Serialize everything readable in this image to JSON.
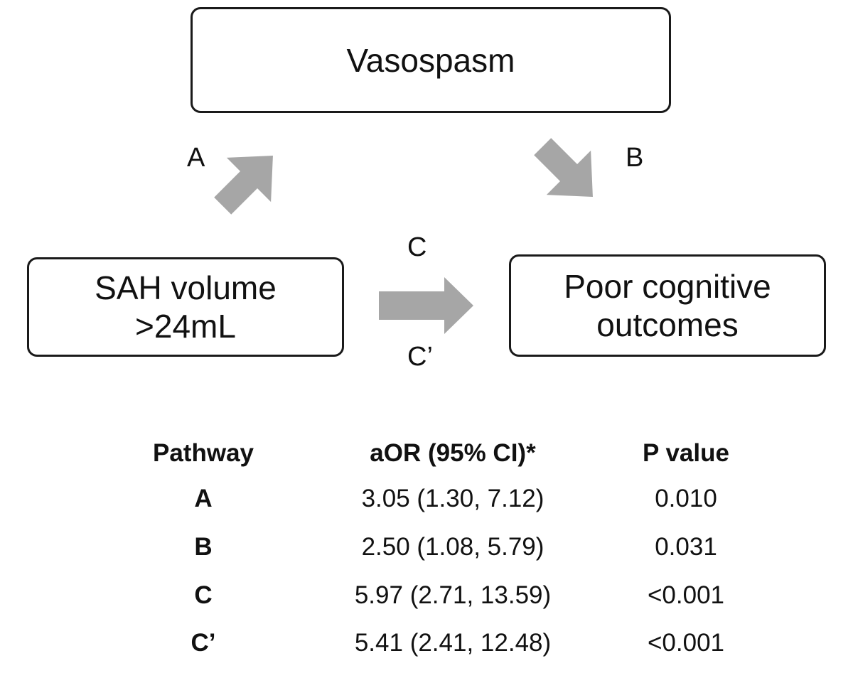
{
  "diagram": {
    "boxes": {
      "vasospasm": "Vasospasm",
      "sah_volume": "SAH volume\n>24mL",
      "poor_outcomes": "Poor cognitive\noutcomes"
    },
    "path_labels": {
      "a": "A",
      "b": "B",
      "c": "C",
      "c_prime": "C’"
    },
    "arrow_color": "#a6a6a6"
  },
  "table": {
    "headers": {
      "pathway": "Pathway",
      "aor": "aOR (95% CI)*",
      "p_value": "P value"
    },
    "rows": [
      {
        "pathway": "A",
        "aor": "3.05 (1.30, 7.12)",
        "p_value": "0.010"
      },
      {
        "pathway": "B",
        "aor": "2.50 (1.08, 5.79)",
        "p_value": "0.031"
      },
      {
        "pathway": "C",
        "aor": "5.97 (2.71, 13.59)",
        "p_value": "<0.001"
      },
      {
        "pathway": "C’",
        "aor": "5.41 (2.41, 12.48)",
        "p_value": "<0.001"
      }
    ]
  }
}
